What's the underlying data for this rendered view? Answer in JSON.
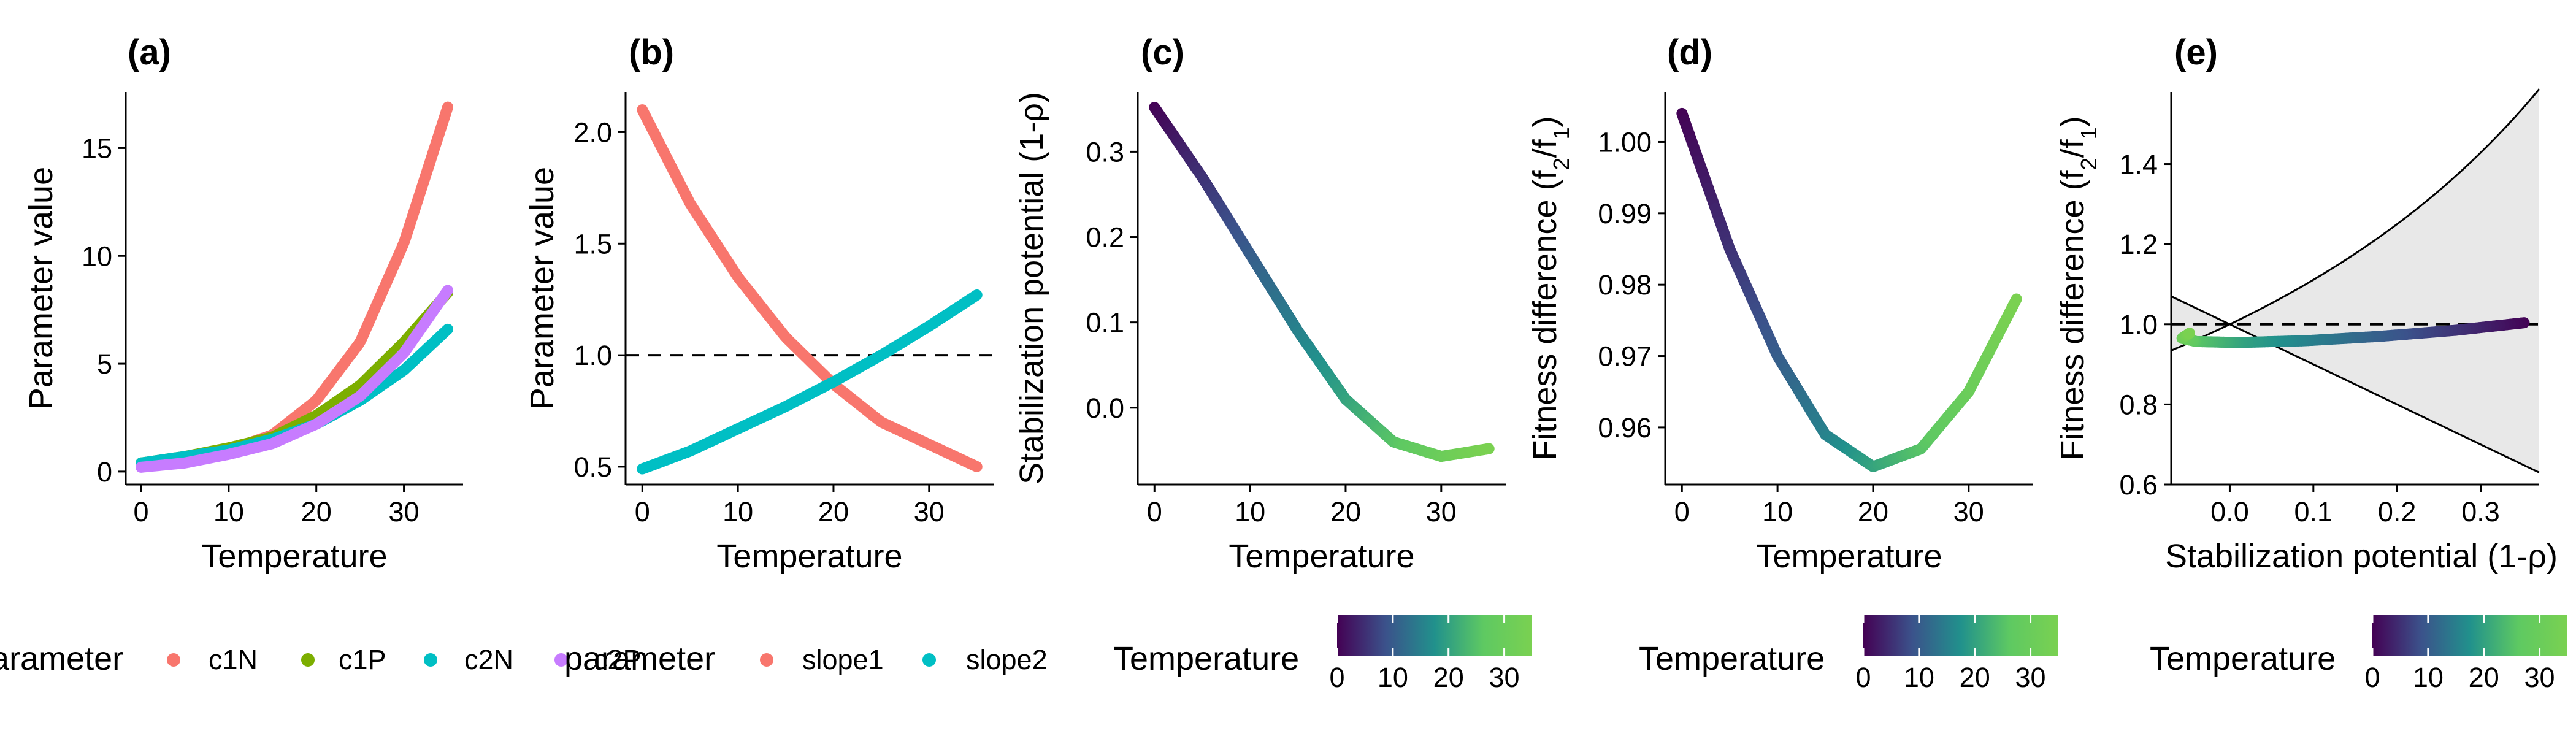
{
  "chart_data": [
    {
      "panel": "(a)",
      "type": "line",
      "xlabel": "Temperature",
      "ylabel": "Parameter value",
      "xlim": [
        -1.75,
        36.75
      ],
      "ylim": [
        -0.6,
        17.6
      ],
      "xticks": [
        0,
        10,
        20,
        30
      ],
      "yticks": [
        0,
        5,
        10,
        15
      ],
      "legend": {
        "title": "parameter",
        "position": "bottom",
        "entries": [
          "c1N",
          "c1P",
          "c2N",
          "c2P"
        ]
      },
      "series": [
        {
          "name": "c1N",
          "color": "#F8766D",
          "x": [
            0,
            5,
            10,
            15,
            20,
            25,
            30,
            35
          ],
          "values": [
            0.3,
            0.6,
            1.0,
            1.7,
            3.3,
            6.0,
            10.6,
            16.9
          ]
        },
        {
          "name": "c1P",
          "color": "#7CAE00",
          "x": [
            0,
            5,
            10,
            15,
            20,
            25,
            30,
            35
          ],
          "values": [
            0.4,
            0.7,
            1.1,
            1.6,
            2.6,
            4.0,
            6.0,
            8.3
          ]
        },
        {
          "name": "c2N",
          "color": "#00BFC4",
          "x": [
            0,
            5,
            10,
            15,
            20,
            25,
            30,
            35
          ],
          "values": [
            0.4,
            0.7,
            1.0,
            1.5,
            2.2,
            3.3,
            4.7,
            6.6
          ]
        },
        {
          "name": "c2P",
          "color": "#C77CFF",
          "x": [
            0,
            5,
            10,
            15,
            20,
            25,
            30,
            35
          ],
          "values": [
            0.2,
            0.4,
            0.8,
            1.3,
            2.2,
            3.5,
            5.5,
            8.4
          ]
        }
      ]
    },
    {
      "panel": "(b)",
      "type": "line",
      "xlabel": "Temperature",
      "ylabel": "Parameter value",
      "xlim": [
        -1.75,
        36.75
      ],
      "ylim": [
        0.42,
        2.18
      ],
      "xticks": [
        0,
        10,
        20,
        30
      ],
      "yticks": [
        0.5,
        1.0,
        1.5,
        2.0
      ],
      "ytick_labels": [
        "0.5",
        "1.0",
        "1.5",
        "2.0"
      ],
      "reference_line": {
        "y": 1.0,
        "style": "dashed"
      },
      "legend": {
        "title": "parameter",
        "position": "bottom",
        "entries": [
          "slope1",
          "slope2"
        ]
      },
      "series": [
        {
          "name": "slope1",
          "color": "#F8766D",
          "x": [
            0,
            5,
            10,
            15,
            20,
            25,
            30,
            35
          ],
          "values": [
            2.1,
            1.68,
            1.35,
            1.08,
            0.87,
            0.7,
            0.6,
            0.5
          ]
        },
        {
          "name": "slope2",
          "color": "#00BFC4",
          "x": [
            0,
            5,
            10,
            15,
            20,
            25,
            30,
            35
          ],
          "values": [
            0.49,
            0.57,
            0.67,
            0.77,
            0.88,
            1.0,
            1.13,
            1.27
          ]
        }
      ]
    },
    {
      "panel": "(c)",
      "type": "line",
      "xlabel": "Temperature",
      "ylabel": "Stabilization potential (1-ρ)",
      "xlim": [
        -1.75,
        36.75
      ],
      "ylim": [
        -0.09,
        0.37
      ],
      "xticks": [
        0,
        10,
        20,
        30
      ],
      "yticks": [
        0.0,
        0.1,
        0.2,
        0.3
      ],
      "ytick_labels": [
        "0.0",
        "0.1",
        "0.2",
        "0.3"
      ],
      "color_by": "Temperature",
      "legend": {
        "title": "Temperature",
        "position": "bottom",
        "colorbar_ticks": [
          0,
          10,
          20,
          30
        ],
        "range": [
          0,
          35
        ]
      },
      "series": [
        {
          "x": [
            0,
            5,
            10,
            15,
            20,
            25,
            30,
            35
          ],
          "values": [
            0.352,
            0.27,
            0.18,
            0.09,
            0.01,
            -0.04,
            -0.057,
            -0.048
          ]
        }
      ]
    },
    {
      "panel": "(d)",
      "type": "line",
      "xlabel": "Temperature",
      "ylabel": "Fitness difference (f2/f1)",
      "xlim": [
        -1.75,
        36.75
      ],
      "ylim": [
        0.952,
        1.007
      ],
      "xticks": [
        0,
        10,
        20,
        30
      ],
      "yticks": [
        0.96,
        0.97,
        0.98,
        0.99,
        1.0
      ],
      "ytick_labels": [
        "0.96",
        "0.97",
        "0.98",
        "0.99",
        "1.00"
      ],
      "color_by": "Temperature",
      "legend": {
        "title": "Temperature",
        "position": "bottom",
        "colorbar_ticks": [
          0,
          10,
          20,
          30
        ],
        "range": [
          0,
          35
        ]
      },
      "series": [
        {
          "x": [
            0,
            5,
            10,
            15,
            20,
            25,
            30,
            35
          ],
          "values": [
            1.004,
            0.985,
            0.97,
            0.959,
            0.9545,
            0.957,
            0.965,
            0.978
          ]
        }
      ]
    },
    {
      "panel": "(e)",
      "type": "line",
      "xlabel": "Stabilization potential (1-ρ)",
      "ylabel": "Fitness difference (f2/f1)",
      "xlim": [
        -0.07,
        0.37
      ],
      "ylim": [
        0.6,
        1.58
      ],
      "xticks": [
        0.0,
        0.1,
        0.2,
        0.3
      ],
      "xtick_labels": [
        "0.0",
        "0.1",
        "0.2",
        "0.3"
      ],
      "yticks": [
        0.6,
        0.8,
        1.0,
        1.2,
        1.4
      ],
      "ytick_labels": [
        "0.6",
        "0.8",
        "1.0",
        "1.2",
        "1.4"
      ],
      "reference_line": {
        "y": 1.0,
        "style": "dashed"
      },
      "coexistence_region": {
        "fill": "#e8e8e8",
        "upper": "1/(1-x)",
        "lower": "1-x"
      },
      "color_by": "Temperature",
      "legend": {
        "title": "Temperature",
        "position": "bottom",
        "colorbar_ticks": [
          0,
          10,
          20,
          30
        ],
        "range": [
          0,
          35
        ]
      },
      "series": [
        {
          "temperature": [
            0,
            5,
            10,
            15,
            20,
            25,
            30,
            35
          ],
          "x": [
            0.352,
            0.27,
            0.18,
            0.09,
            0.01,
            -0.04,
            -0.057,
            -0.048
          ],
          "values": [
            1.004,
            0.985,
            0.97,
            0.959,
            0.9545,
            0.957,
            0.965,
            0.978
          ]
        }
      ]
    }
  ]
}
